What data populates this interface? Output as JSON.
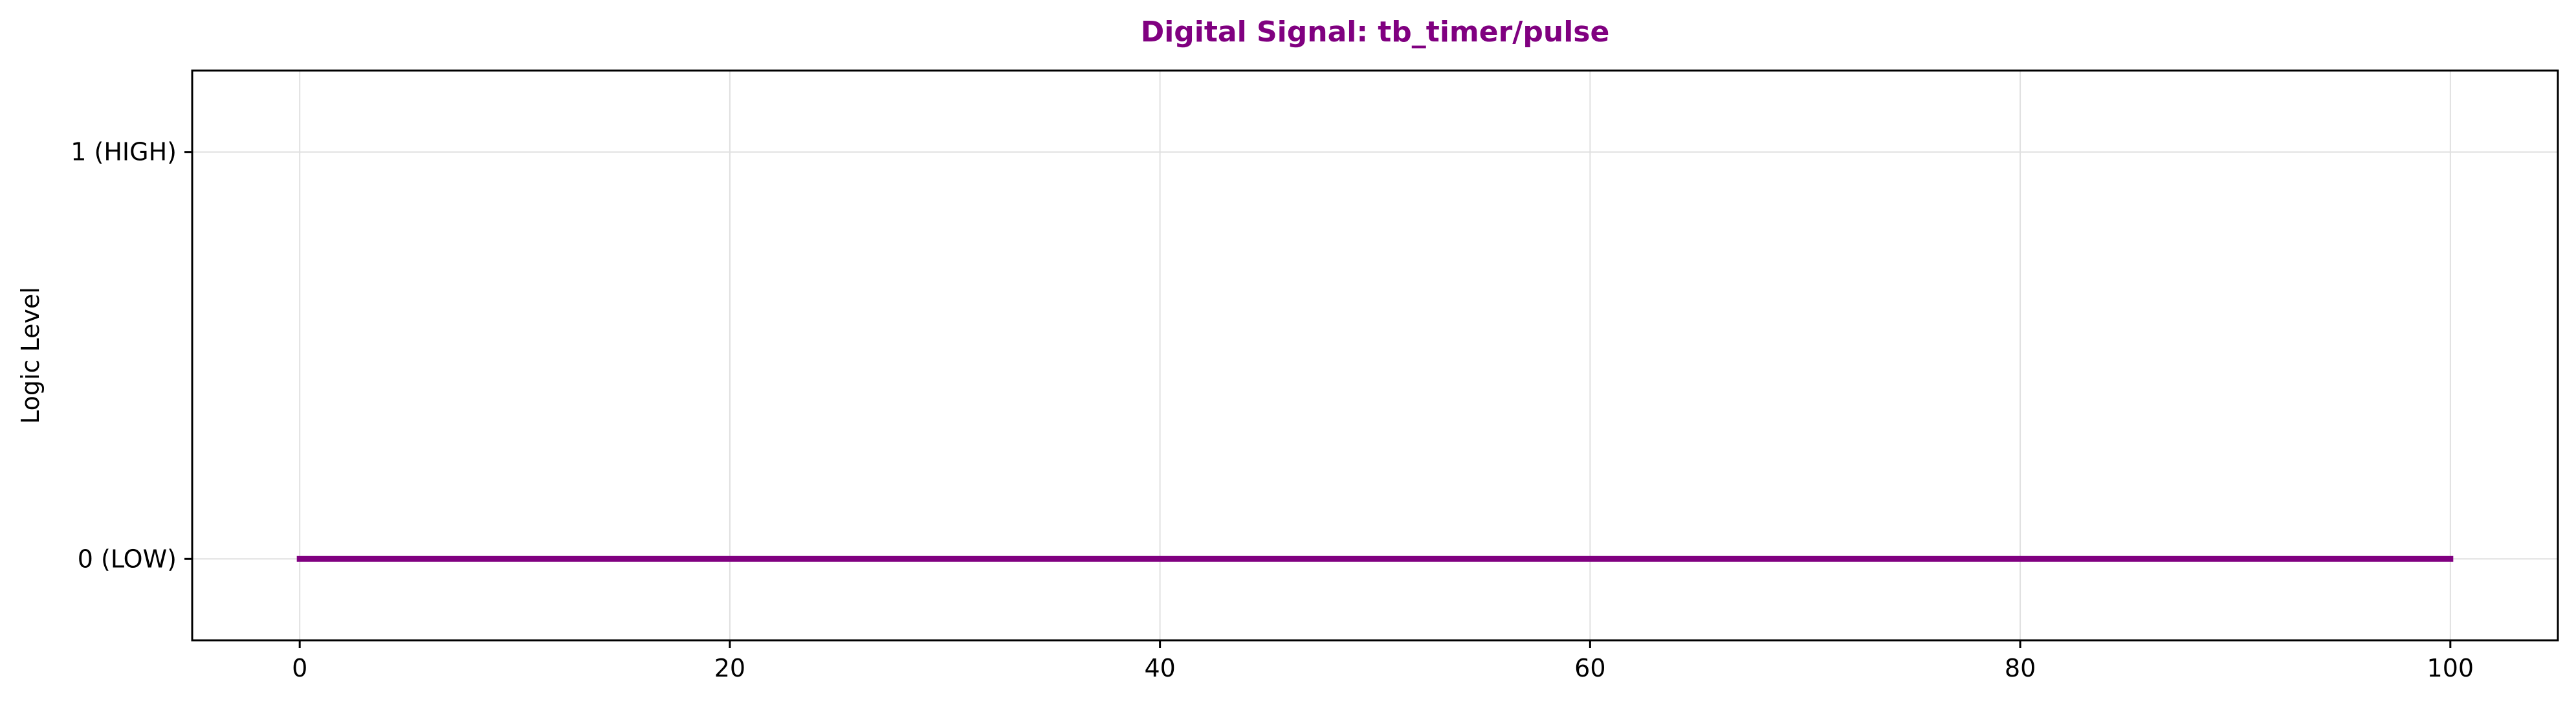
{
  "chart_data": {
    "type": "line",
    "title": "Digital Signal: tb_timer/pulse",
    "xlabel": "",
    "ylabel": "Logic Level",
    "xlim": [
      -5,
      105
    ],
    "ylim": [
      -0.2,
      1.2
    ],
    "x_ticks": [
      0,
      20,
      40,
      60,
      80,
      100
    ],
    "x_tick_labels": [
      "0",
      "20",
      "40",
      "60",
      "80",
      "100"
    ],
    "y_ticks": [
      0,
      1
    ],
    "y_tick_labels": [
      "0 (LOW)",
      "1 (HIGH)"
    ],
    "grid": true,
    "legend": false,
    "step": true,
    "series": [
      {
        "x": [
          0,
          100
        ],
        "y": [
          0,
          0
        ],
        "color": "#800080"
      }
    ],
    "colors": {
      "title": "#800080",
      "signal": "#800080",
      "grid": "#e0e0e0",
      "axes": "#000000"
    }
  }
}
